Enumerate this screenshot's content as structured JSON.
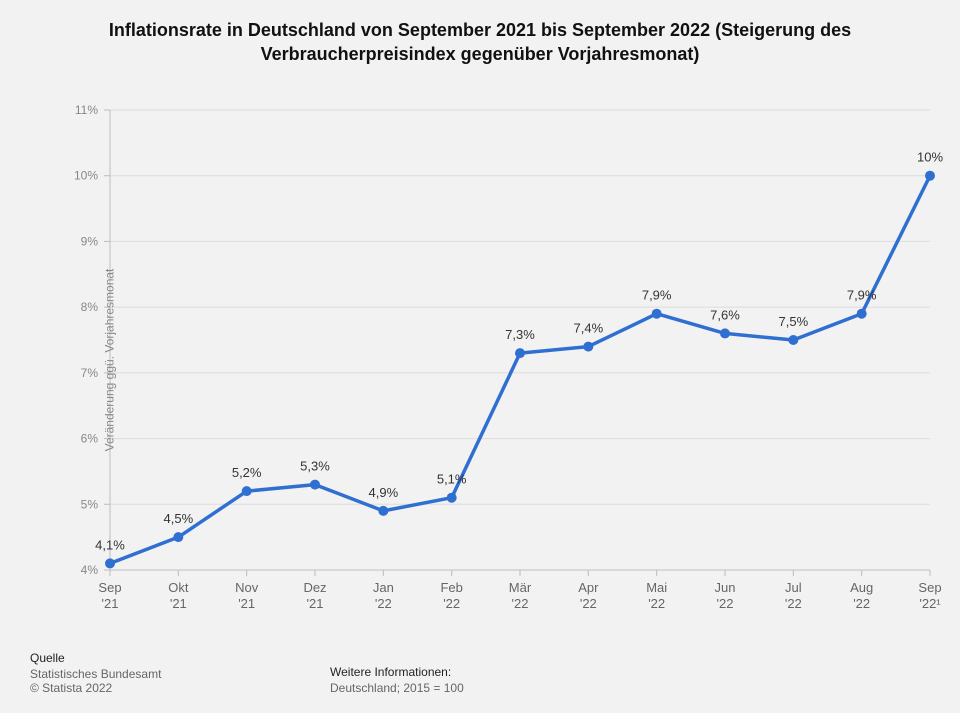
{
  "title": "Inflationsrate in Deutschland von September 2021 bis September 2022 (Steigerung des Verbraucherpreisindex gegenüber Vorjahresmonat)",
  "title_fontsize": 18,
  "ylabel": "Veränderung ggü. Vorjahresmonat",
  "chart": {
    "type": "line",
    "categories": [
      "Sep '21",
      "Okt '21",
      "Nov '21",
      "Dez '21",
      "Jan '22",
      "Feb '22",
      "Mär '22",
      "Apr '22",
      "Mai '22",
      "Jun '22",
      "Jul '22",
      "Aug '22",
      "Sep '22¹"
    ],
    "values": [
      4.1,
      4.5,
      5.2,
      5.3,
      4.9,
      5.1,
      7.3,
      7.4,
      7.9,
      7.6,
      7.5,
      7.9,
      10.0
    ],
    "value_labels": [
      "4,1%",
      "4,5%",
      "5,2%",
      "5,3%",
      "4,9%",
      "5,1%",
      "7,3%",
      "7,4%",
      "7,9%",
      "7,6%",
      "7,5%",
      "7,9%",
      "10%"
    ],
    "ylim": [
      4,
      11
    ],
    "yticks": [
      4,
      5,
      6,
      7,
      8,
      9,
      10,
      11
    ],
    "ytick_labels": [
      "4%",
      "5%",
      "6%",
      "7%",
      "8%",
      "9%",
      "10%",
      "11%"
    ],
    "line_color": "#2f6fd1",
    "line_width": 3.5,
    "marker_color": "#2f6fd1",
    "marker_radius": 5,
    "grid_color": "#dcdcdc",
    "axis_color": "#bdbdbd",
    "background_color": "#f2f2f2",
    "label_fontsize": 13,
    "tick_fontsize": 12
  },
  "footer": {
    "source_heading": "Quelle",
    "source_line1": "Statistisches Bundesamt",
    "source_line2": "© Statista 2022",
    "info_heading": "Weitere Informationen:",
    "info_line1": "Deutschland; 2015 = 100"
  }
}
